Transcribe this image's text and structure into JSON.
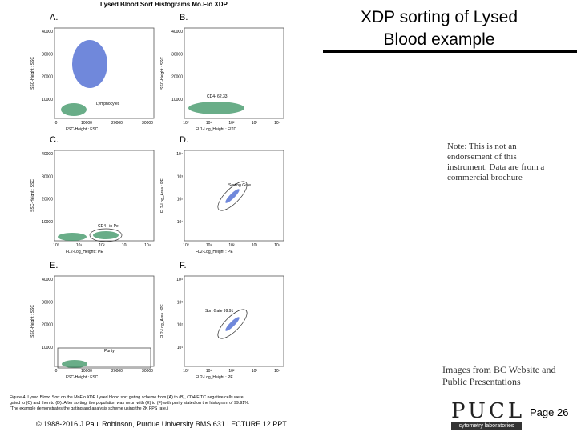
{
  "header": {
    "title_lines": [
      "XDP sorting of Lysed",
      "Blood example"
    ]
  },
  "note": [
    "Note: This is not an",
    "endorsement of this",
    "instrument. Data are from a",
    "commercial brochure"
  ],
  "source": [
    "Images from BC Website and",
    "Public Presentations"
  ],
  "page": "Page 26",
  "logo": {
    "name": "PUCL",
    "tagline": "cytometry laboratories"
  },
  "footer": "© 1988-2016 J.Paul Robinson, Purdue University BMS 631 LECTURE 12.PPT",
  "figure": {
    "title": "Lysed Blood Sort Histograms   Mo.Flo XDP",
    "panels": [
      {
        "letter": "A.",
        "x_label": "FSC-Height : FSC",
        "y_label": "SSC-Height : SSC",
        "x_ticks": [
          "0",
          "10000",
          "20000",
          "30000"
        ],
        "y_ticks": [
          "10000",
          "20000",
          "30000",
          "40000"
        ],
        "gate_label": "Lymphocytes"
      },
      {
        "letter": "B.",
        "x_label": "FL1-Log_Height : FITC",
        "y_label": "SSC-Height : SSC",
        "x_ticks": [
          "10⁰",
          "10¹",
          "10²",
          "10³",
          "10⁴"
        ],
        "y_ticks": [
          "10000",
          "20000",
          "30000",
          "40000"
        ],
        "gate_label": "CD4- 62.33"
      },
      {
        "letter": "C.",
        "x_label": "FL2-Log_Height : PE",
        "y_label": "SSC-Height : SSC",
        "x_ticks": [
          "10⁰",
          "10¹",
          "10²",
          "10³",
          "10⁴"
        ],
        "y_ticks": [
          "10000",
          "20000",
          "30000",
          "40000"
        ],
        "gate_label": "CD4+ in Pe"
      },
      {
        "letter": "D.",
        "x_label": "FL2-Log_Height : PE",
        "y_label": "FL2-Log_Area : PE",
        "x_ticks": [
          "10⁰",
          "10¹",
          "10²",
          "10³",
          "10⁴"
        ],
        "y_ticks": [
          "10¹",
          "10²",
          "10³",
          "10⁴"
        ],
        "gate_label": "Sorting Gate"
      },
      {
        "letter": "E.",
        "x_label": "FSC-Height : FSC",
        "y_label": "SSC-Height : SSC",
        "x_ticks": [
          "0",
          "10000",
          "20000",
          "30000"
        ],
        "y_ticks": [
          "10000",
          "20000",
          "30000",
          "40000"
        ],
        "gate_label": "Purity"
      },
      {
        "letter": "F.",
        "x_label": "FL2-Log_Height : PE",
        "y_label": "FL2-Log_Area : PE",
        "x_ticks": [
          "10⁰",
          "10¹",
          "10²",
          "10³",
          "10⁴"
        ],
        "y_ticks": [
          "10¹",
          "10²",
          "10³",
          "10⁴"
        ],
        "gate_label": "Sort Gate 99.91"
      }
    ],
    "caption": [
      "Figure 4. Lysed Blood Sort on the MoFlo XDP Lysed blood sort gating scheme from (A) to (B), CD4 FITC negative cells were",
      "gated to (C) and then to (D). After sorting, the population was rerun with (E) to (F) with purity stated on the histogram of 99.91%.",
      "(The example demonstrates the gating and analysis scheme using the 2K FPS rate.)"
    ]
  }
}
